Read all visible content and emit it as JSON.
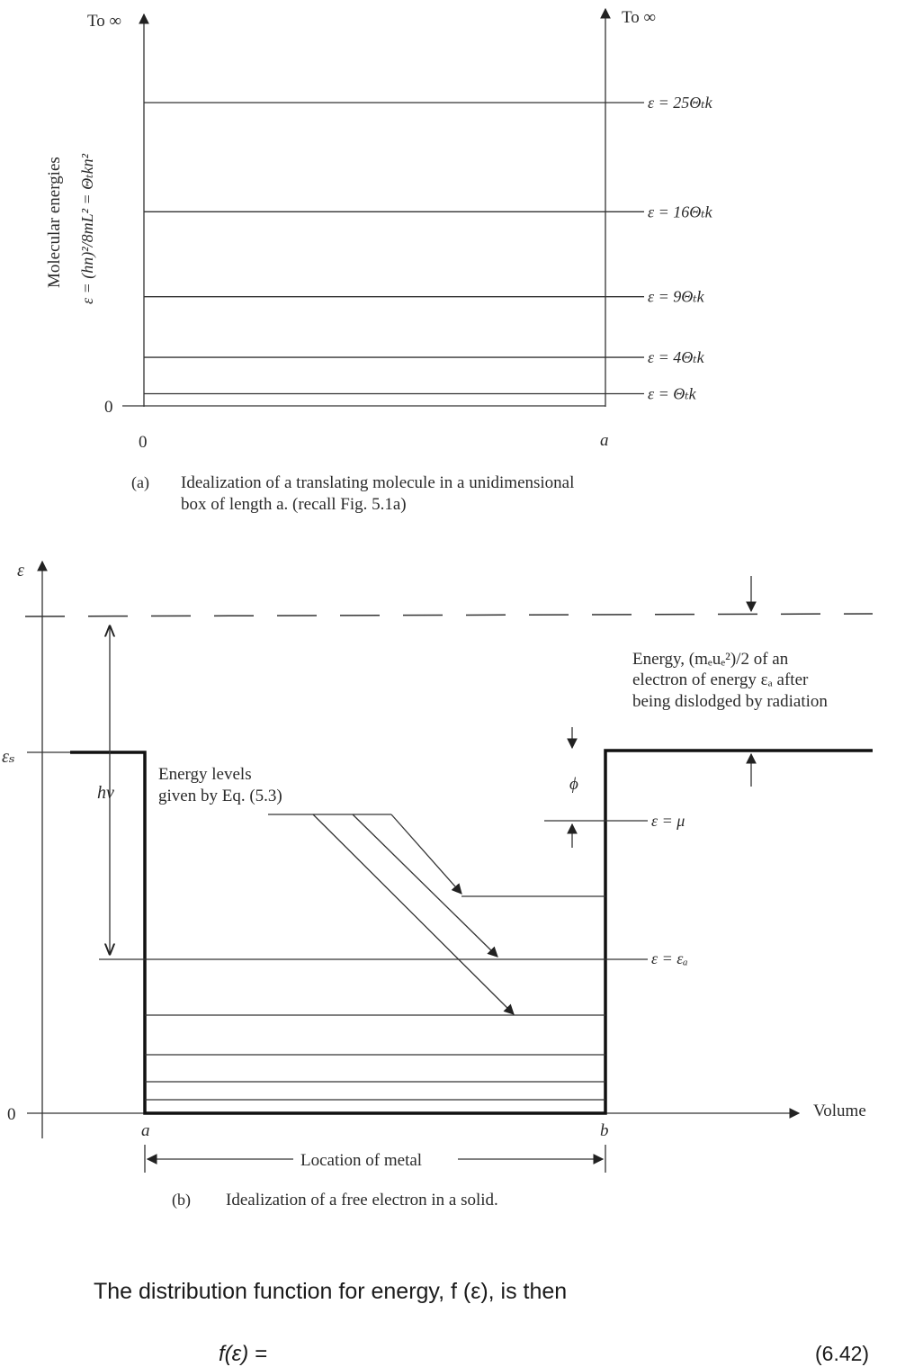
{
  "fig_a": {
    "top_left_label": "To ∞",
    "top_right_label": "To ∞",
    "y_axis_label_line1": "Molecular energies",
    "y_axis_label_line2": "ε = (hn)²/8mL² = Θₜkn²",
    "zero_y": "0",
    "zero_x": "0",
    "right_x": "a",
    "levels": [
      {
        "n2": 25,
        "label": "ε = 25Θₜk"
      },
      {
        "n2": 16,
        "label": "ε = 16Θₜk"
      },
      {
        "n2": 9,
        "label": "ε = 9Θₜk"
      },
      {
        "n2": 4,
        "label": "ε = 4Θₜk"
      },
      {
        "n2": 1,
        "label": "ε = Θₜk"
      }
    ],
    "caption_tag": "(a)",
    "caption_line1": "Idealization of a translating molecule in a unidimensional",
    "caption_line2": "box of length a.  (recall Fig. 5.1a)"
  },
  "fig_b": {
    "y_axis_label": "ε",
    "es_label": "εₛ",
    "zero_label": "0",
    "hv_label": "hν",
    "phi_label": "ϕ",
    "mu_label": "ε = μ",
    "ea_label": "ε = εₐ",
    "x_axis_label": "Volume",
    "a_label": "a",
    "b_label": "b",
    "location_label": "Location of metal",
    "levels_note_line1": "Energy levels",
    "levels_note_line2": "given by Eq. (5.3)",
    "energy_note_line1": "Energy, (mₑuₑ²)/2 of an",
    "energy_note_line2": "electron of energy εₐ after",
    "energy_note_line3": "being dislodged by radiation",
    "caption_tag": "(b)",
    "caption_text": "Idealization of a free electron in a solid."
  },
  "body_text": {
    "sentence": "The distribution function for energy, f (ε), is then",
    "equation_lhs": "f(ε)  =",
    "equation_num": "(6.42)"
  }
}
